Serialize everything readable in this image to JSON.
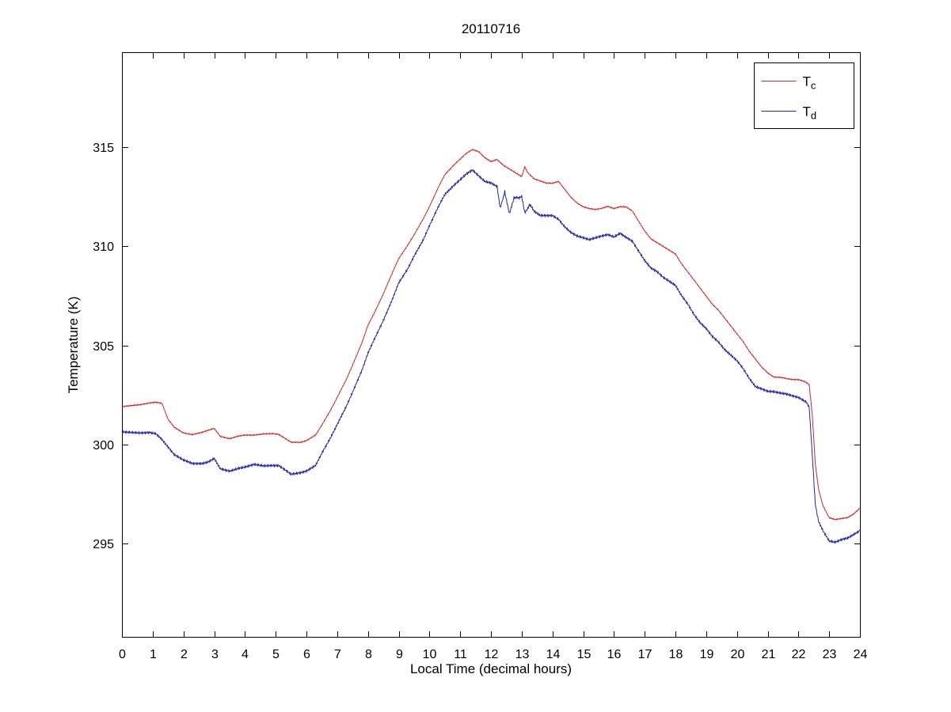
{
  "figure": {
    "title": "20110716"
  },
  "chart_data": {
    "type": "line",
    "title": "20110716",
    "xlabel": "Local Time (decimal hours)",
    "ylabel": "Temperature (K)",
    "xlim": [
      0,
      24
    ],
    "ylim": [
      290.3,
      319.8
    ],
    "xticks": [
      0,
      1,
      2,
      3,
      4,
      5,
      6,
      7,
      8,
      9,
      10,
      11,
      12,
      13,
      14,
      15,
      16,
      17,
      18,
      19,
      20,
      21,
      22,
      23,
      24
    ],
    "yticks": [
      295,
      300,
      305,
      310,
      315
    ],
    "grid": false,
    "box": true,
    "axis_color": "#000000",
    "legend": {
      "position": "northeast",
      "border_color": "#000000",
      "fill": "#ffffff",
      "entries": [
        {
          "base": "T",
          "sub": "c",
          "color": "#cc2929"
        },
        {
          "base": "T",
          "sub": "d",
          "color": "#2626a8"
        }
      ]
    },
    "series": [
      {
        "name": "T_c",
        "color": "#cc2929",
        "noise_amp": 0.05,
        "points": [
          [
            0,
            301.9
          ],
          [
            0.3,
            301.95
          ],
          [
            0.6,
            302.0
          ],
          [
            0.9,
            302.1
          ],
          [
            1.1,
            302.15
          ],
          [
            1.3,
            302.1
          ],
          [
            1.5,
            301.3
          ],
          [
            1.7,
            300.9
          ],
          [
            2.0,
            300.6
          ],
          [
            2.3,
            300.5
          ],
          [
            2.6,
            300.6
          ],
          [
            2.8,
            300.7
          ],
          [
            3.0,
            300.8
          ],
          [
            3.2,
            300.4
          ],
          [
            3.5,
            300.3
          ],
          [
            3.8,
            300.45
          ],
          [
            4.0,
            300.5
          ],
          [
            4.3,
            300.5
          ],
          [
            4.6,
            300.55
          ],
          [
            4.9,
            300.55
          ],
          [
            5.1,
            300.5
          ],
          [
            5.3,
            300.3
          ],
          [
            5.5,
            300.1
          ],
          [
            5.8,
            300.1
          ],
          [
            6.0,
            300.2
          ],
          [
            6.3,
            300.5
          ],
          [
            6.5,
            301.0
          ],
          [
            6.8,
            301.8
          ],
          [
            7.0,
            302.4
          ],
          [
            7.3,
            303.3
          ],
          [
            7.5,
            304.0
          ],
          [
            7.8,
            305.1
          ],
          [
            8.0,
            306.0
          ],
          [
            8.2,
            306.6
          ],
          [
            8.5,
            307.6
          ],
          [
            8.8,
            308.7
          ],
          [
            9.0,
            309.4
          ],
          [
            9.3,
            310.1
          ],
          [
            9.5,
            310.6
          ],
          [
            9.8,
            311.4
          ],
          [
            10.0,
            312.0
          ],
          [
            10.3,
            313.0
          ],
          [
            10.5,
            313.6
          ],
          [
            10.8,
            314.1
          ],
          [
            11.0,
            314.4
          ],
          [
            11.2,
            314.7
          ],
          [
            11.4,
            314.9
          ],
          [
            11.6,
            314.8
          ],
          [
            11.8,
            314.5
          ],
          [
            12.0,
            314.3
          ],
          [
            12.2,
            314.4
          ],
          [
            12.4,
            314.1
          ],
          [
            12.6,
            313.9
          ],
          [
            12.8,
            313.7
          ],
          [
            13.0,
            313.5
          ],
          [
            13.1,
            314.0
          ],
          [
            13.2,
            313.7
          ],
          [
            13.4,
            313.4
          ],
          [
            13.6,
            313.3
          ],
          [
            13.8,
            313.2
          ],
          [
            14.0,
            313.2
          ],
          [
            14.2,
            313.3
          ],
          [
            14.4,
            312.9
          ],
          [
            14.6,
            312.5
          ],
          [
            14.8,
            312.2
          ],
          [
            15.0,
            312.0
          ],
          [
            15.2,
            311.9
          ],
          [
            15.4,
            311.85
          ],
          [
            15.6,
            311.9
          ],
          [
            15.8,
            312.0
          ],
          [
            16.0,
            311.9
          ],
          [
            16.2,
            312.0
          ],
          [
            16.4,
            312.0
          ],
          [
            16.6,
            311.8
          ],
          [
            16.8,
            311.3
          ],
          [
            17.0,
            310.8
          ],
          [
            17.2,
            310.4
          ],
          [
            17.4,
            310.2
          ],
          [
            17.6,
            310.0
          ],
          [
            17.8,
            309.8
          ],
          [
            18.0,
            309.6
          ],
          [
            18.2,
            309.1
          ],
          [
            18.4,
            308.7
          ],
          [
            18.6,
            308.3
          ],
          [
            18.8,
            307.9
          ],
          [
            19.0,
            307.5
          ],
          [
            19.2,
            307.1
          ],
          [
            19.4,
            306.8
          ],
          [
            19.6,
            306.4
          ],
          [
            19.8,
            306.0
          ],
          [
            20.0,
            305.6
          ],
          [
            20.2,
            305.2
          ],
          [
            20.4,
            304.7
          ],
          [
            20.6,
            304.3
          ],
          [
            20.8,
            303.9
          ],
          [
            21.0,
            303.6
          ],
          [
            21.2,
            303.4
          ],
          [
            21.4,
            303.4
          ],
          [
            21.6,
            303.35
          ],
          [
            21.8,
            303.3
          ],
          [
            22.0,
            303.3
          ],
          [
            22.2,
            303.2
          ],
          [
            22.35,
            303.0
          ],
          [
            22.45,
            301.5
          ],
          [
            22.55,
            299.0
          ],
          [
            22.65,
            297.8
          ],
          [
            22.8,
            296.9
          ],
          [
            23.0,
            296.3
          ],
          [
            23.2,
            296.2
          ],
          [
            23.4,
            296.25
          ],
          [
            23.6,
            296.3
          ],
          [
            23.8,
            296.5
          ],
          [
            24,
            296.8
          ]
        ]
      },
      {
        "name": "T_d",
        "color": "#2626a8",
        "noise_amp": 0.11,
        "points": [
          [
            0,
            300.6
          ],
          [
            0.3,
            300.6
          ],
          [
            0.6,
            300.6
          ],
          [
            0.9,
            300.65
          ],
          [
            1.1,
            300.6
          ],
          [
            1.3,
            300.3
          ],
          [
            1.5,
            299.9
          ],
          [
            1.7,
            299.5
          ],
          [
            2.0,
            299.2
          ],
          [
            2.3,
            299.0
          ],
          [
            2.6,
            299.0
          ],
          [
            2.8,
            299.1
          ],
          [
            3.0,
            299.3
          ],
          [
            3.2,
            298.8
          ],
          [
            3.5,
            298.7
          ],
          [
            3.8,
            298.85
          ],
          [
            4.0,
            298.9
          ],
          [
            4.3,
            299.0
          ],
          [
            4.6,
            298.9
          ],
          [
            4.9,
            298.9
          ],
          [
            5.1,
            298.9
          ],
          [
            5.3,
            298.7
          ],
          [
            5.5,
            298.5
          ],
          [
            5.8,
            298.6
          ],
          [
            6.0,
            298.7
          ],
          [
            6.3,
            299.0
          ],
          [
            6.5,
            299.6
          ],
          [
            6.8,
            300.4
          ],
          [
            7.0,
            301.0
          ],
          [
            7.3,
            301.9
          ],
          [
            7.5,
            302.6
          ],
          [
            7.8,
            303.7
          ],
          [
            8.0,
            304.6
          ],
          [
            8.2,
            305.3
          ],
          [
            8.5,
            306.3
          ],
          [
            8.8,
            307.4
          ],
          [
            9.0,
            308.2
          ],
          [
            9.3,
            308.9
          ],
          [
            9.5,
            309.5
          ],
          [
            9.8,
            310.3
          ],
          [
            10.0,
            311.0
          ],
          [
            10.3,
            312.0
          ],
          [
            10.5,
            312.6
          ],
          [
            10.8,
            313.1
          ],
          [
            11.0,
            313.4
          ],
          [
            11.2,
            313.7
          ],
          [
            11.4,
            313.9
          ],
          [
            11.6,
            313.6
          ],
          [
            11.8,
            313.3
          ],
          [
            12.0,
            313.2
          ],
          [
            12.2,
            313.0
          ],
          [
            12.3,
            311.9
          ],
          [
            12.45,
            312.8
          ],
          [
            12.6,
            311.6
          ],
          [
            12.75,
            312.5
          ],
          [
            12.9,
            312.4
          ],
          [
            13.0,
            312.5
          ],
          [
            13.1,
            311.7
          ],
          [
            13.25,
            312.1
          ],
          [
            13.4,
            311.8
          ],
          [
            13.6,
            311.6
          ],
          [
            13.8,
            311.6
          ],
          [
            14.0,
            311.6
          ],
          [
            14.2,
            311.4
          ],
          [
            14.4,
            311.0
          ],
          [
            14.6,
            310.7
          ],
          [
            14.8,
            310.5
          ],
          [
            15.0,
            310.4
          ],
          [
            15.2,
            310.3
          ],
          [
            15.4,
            310.4
          ],
          [
            15.6,
            310.5
          ],
          [
            15.8,
            310.6
          ],
          [
            16.0,
            310.5
          ],
          [
            16.2,
            310.7
          ],
          [
            16.4,
            310.5
          ],
          [
            16.6,
            310.3
          ],
          [
            16.8,
            309.8
          ],
          [
            17.0,
            309.3
          ],
          [
            17.2,
            308.9
          ],
          [
            17.4,
            308.7
          ],
          [
            17.6,
            308.4
          ],
          [
            17.8,
            308.2
          ],
          [
            18.0,
            308.0
          ],
          [
            18.2,
            307.5
          ],
          [
            18.4,
            307.1
          ],
          [
            18.6,
            306.6
          ],
          [
            18.8,
            306.2
          ],
          [
            19.0,
            305.9
          ],
          [
            19.2,
            305.5
          ],
          [
            19.4,
            305.2
          ],
          [
            19.6,
            304.8
          ],
          [
            19.8,
            304.5
          ],
          [
            20.0,
            304.2
          ],
          [
            20.2,
            303.8
          ],
          [
            20.4,
            303.3
          ],
          [
            20.6,
            302.9
          ],
          [
            20.8,
            302.8
          ],
          [
            21.0,
            302.7
          ],
          [
            21.2,
            302.7
          ],
          [
            21.4,
            302.65
          ],
          [
            21.6,
            302.6
          ],
          [
            21.8,
            302.5
          ],
          [
            22.0,
            302.4
          ],
          [
            22.2,
            302.2
          ],
          [
            22.35,
            301.9
          ],
          [
            22.45,
            299.5
          ],
          [
            22.55,
            297.0
          ],
          [
            22.65,
            296.2
          ],
          [
            22.8,
            295.6
          ],
          [
            23.0,
            295.1
          ],
          [
            23.2,
            295.05
          ],
          [
            23.4,
            295.2
          ],
          [
            23.6,
            295.3
          ],
          [
            23.8,
            295.5
          ],
          [
            24,
            295.7
          ]
        ]
      }
    ]
  }
}
